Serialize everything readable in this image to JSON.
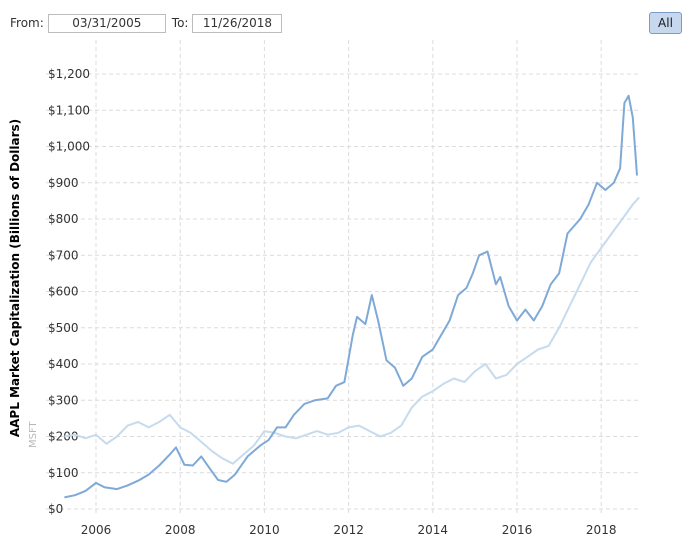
{
  "range": {
    "from_label": "From:",
    "from_value": "03/31/2005",
    "to_label": "To:",
    "to_value": "11/26/2018",
    "all_button": "All"
  },
  "watermark": "MSFT",
  "chart_data": {
    "type": "line",
    "title": "",
    "xlabel": "",
    "ylabel": "AAPL Market Capitalization (Billions of Dollars)",
    "ylim": [
      0,
      1250
    ],
    "xlim": [
      2005.25,
      2018.9
    ],
    "yticks": [
      "$0",
      "$100",
      "$200",
      "$300",
      "$400",
      "$500",
      "$600",
      "$700",
      "$800",
      "$900",
      "$1,000",
      "$1,100",
      "$1,200"
    ],
    "xticks": [
      "2006",
      "2008",
      "2010",
      "2012",
      "2014",
      "2016",
      "2018"
    ],
    "grid": true,
    "series": [
      {
        "color": "#7fa9d6",
        "x": [
          2005.25,
          2005.5,
          2005.75,
          2006.0,
          2006.2,
          2006.5,
          2006.75,
          2007.0,
          2007.25,
          2007.5,
          2007.75,
          2007.9,
          2008.1,
          2008.3,
          2008.5,
          2008.7,
          2008.9,
          2009.1,
          2009.3,
          2009.6,
          2009.9,
          2010.1,
          2010.3,
          2010.5,
          2010.7,
          2010.95,
          2011.2,
          2011.5,
          2011.7,
          2011.9,
          2012.1,
          2012.2,
          2012.4,
          2012.55,
          2012.7,
          2012.9,
          2013.1,
          2013.3,
          2013.5,
          2013.75,
          2014.0,
          2014.2,
          2014.4,
          2014.6,
          2014.8,
          2014.95,
          2015.1,
          2015.3,
          2015.5,
          2015.6,
          2015.8,
          2016.0,
          2016.2,
          2016.4,
          2016.6,
          2016.8,
          2017.0,
          2017.2,
          2017.5,
          2017.7,
          2017.9,
          2018.1,
          2018.3,
          2018.45,
          2018.55,
          2018.65,
          2018.75,
          2018.85
        ],
        "values": [
          32,
          38,
          50,
          72,
          60,
          55,
          65,
          78,
          95,
          120,
          150,
          170,
          122,
          120,
          145,
          112,
          80,
          75,
          95,
          145,
          175,
          190,
          225,
          225,
          260,
          290,
          300,
          305,
          340,
          350,
          480,
          530,
          510,
          590,
          520,
          410,
          390,
          340,
          360,
          420,
          440,
          480,
          520,
          590,
          610,
          650,
          700,
          710,
          620,
          640,
          560,
          520,
          550,
          520,
          560,
          620,
          650,
          760,
          800,
          840,
          900,
          880,
          900,
          940,
          1120,
          1140,
          1080,
          920
        ]
      },
      {
        "color": "#c6dbee",
        "x": [
          2005.25,
          2005.5,
          2005.75,
          2006.0,
          2006.25,
          2006.5,
          2006.75,
          2007.0,
          2007.25,
          2007.5,
          2007.75,
          2008.0,
          2008.25,
          2008.5,
          2008.75,
          2009.0,
          2009.25,
          2009.5,
          2009.75,
          2010.0,
          2010.25,
          2010.5,
          2010.75,
          2011.0,
          2011.25,
          2011.5,
          2011.75,
          2012.0,
          2012.25,
          2012.5,
          2012.75,
          2013.0,
          2013.25,
          2013.5,
          2013.75,
          2014.0,
          2014.25,
          2014.5,
          2014.75,
          2015.0,
          2015.25,
          2015.5,
          2015.75,
          2016.0,
          2016.25,
          2016.5,
          2016.75,
          2017.0,
          2017.25,
          2017.5,
          2017.75,
          2018.0,
          2018.25,
          2018.5,
          2018.75,
          2018.9
        ],
        "values": [
          200,
          205,
          195,
          205,
          180,
          200,
          230,
          240,
          225,
          240,
          260,
          225,
          210,
          185,
          160,
          140,
          125,
          150,
          175,
          215,
          210,
          200,
          195,
          205,
          215,
          205,
          210,
          225,
          230,
          215,
          200,
          210,
          230,
          280,
          310,
          325,
          345,
          360,
          350,
          380,
          400,
          360,
          370,
          400,
          420,
          440,
          450,
          500,
          560,
          620,
          680,
          720,
          760,
          800,
          840,
          860
        ]
      }
    ]
  }
}
